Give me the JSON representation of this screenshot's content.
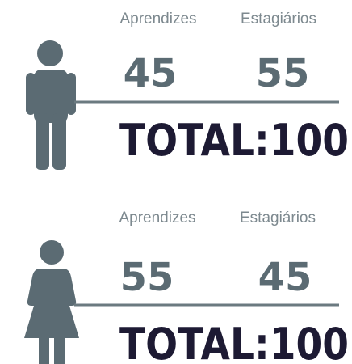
{
  "groups": [
    {
      "labels": [
        "Aprendizes",
        "Estagiários"
      ],
      "values": [
        45,
        55
      ],
      "total_label": "TOTAL:",
      "total": 100
    },
    {
      "labels": [
        "Aprendizes",
        "Estagiários"
      ],
      "values": [
        55,
        45
      ],
      "total_label": "TOTAL:",
      "total": 100
    }
  ]
}
